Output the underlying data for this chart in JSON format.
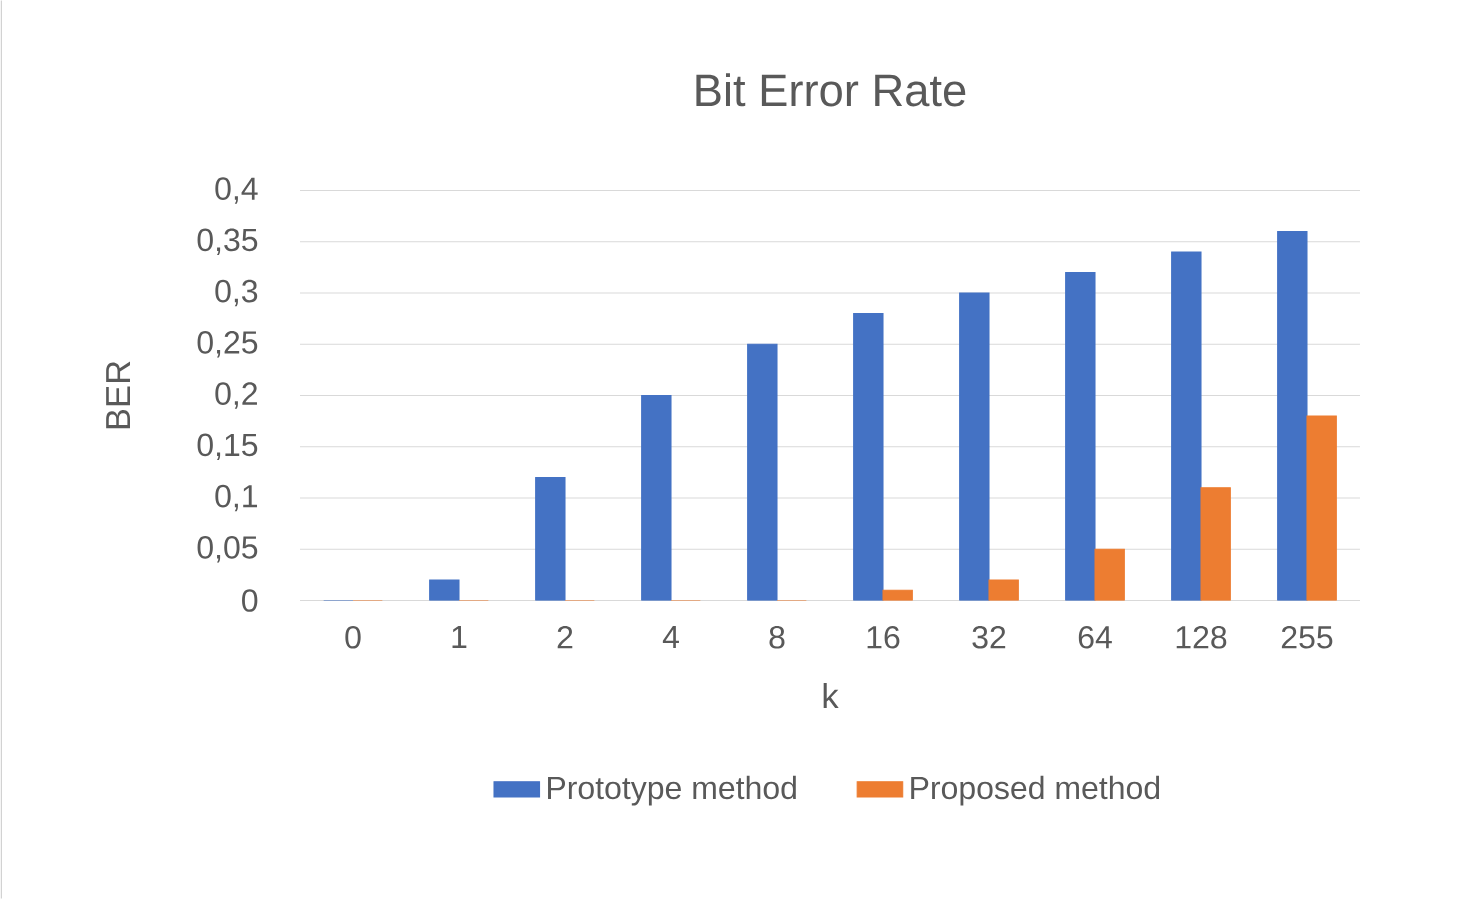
{
  "chart_data": {
    "type": "bar",
    "title": "Bit Error Rate",
    "xlabel": "k",
    "ylabel": "BER",
    "categories": [
      "0",
      "1",
      "2",
      "4",
      "8",
      "16",
      "32",
      "64",
      "128",
      "255"
    ],
    "series": [
      {
        "name": "Prototype method",
        "color": "#4472c4",
        "values": [
          0,
          0.02,
          0.12,
          0.2,
          0.25,
          0.28,
          0.3,
          0.32,
          0.34,
          0.36
        ]
      },
      {
        "name": "Proposed method",
        "color": "#ed7d31",
        "values": [
          0,
          0,
          0,
          0,
          0,
          0.01,
          0.02,
          0.05,
          0.11,
          0.18
        ]
      }
    ],
    "ylim": [
      0,
      0.4
    ],
    "yticks": [
      0,
      {
        "value": 0.05,
        "label": "0,05"
      },
      {
        "value": 0.1,
        "label": "0,1"
      },
      {
        "value": 0.15,
        "label": "0,15"
      },
      {
        "value": 0.2,
        "label": "0,2"
      },
      {
        "value": 0.25,
        "label": "0,25"
      },
      {
        "value": 0.3,
        "label": "0,3"
      },
      {
        "value": 0.35,
        "label": "0,35"
      },
      {
        "value": 0.4,
        "label": "0,4"
      }
    ],
    "grid": "y",
    "legend": "bottom"
  }
}
